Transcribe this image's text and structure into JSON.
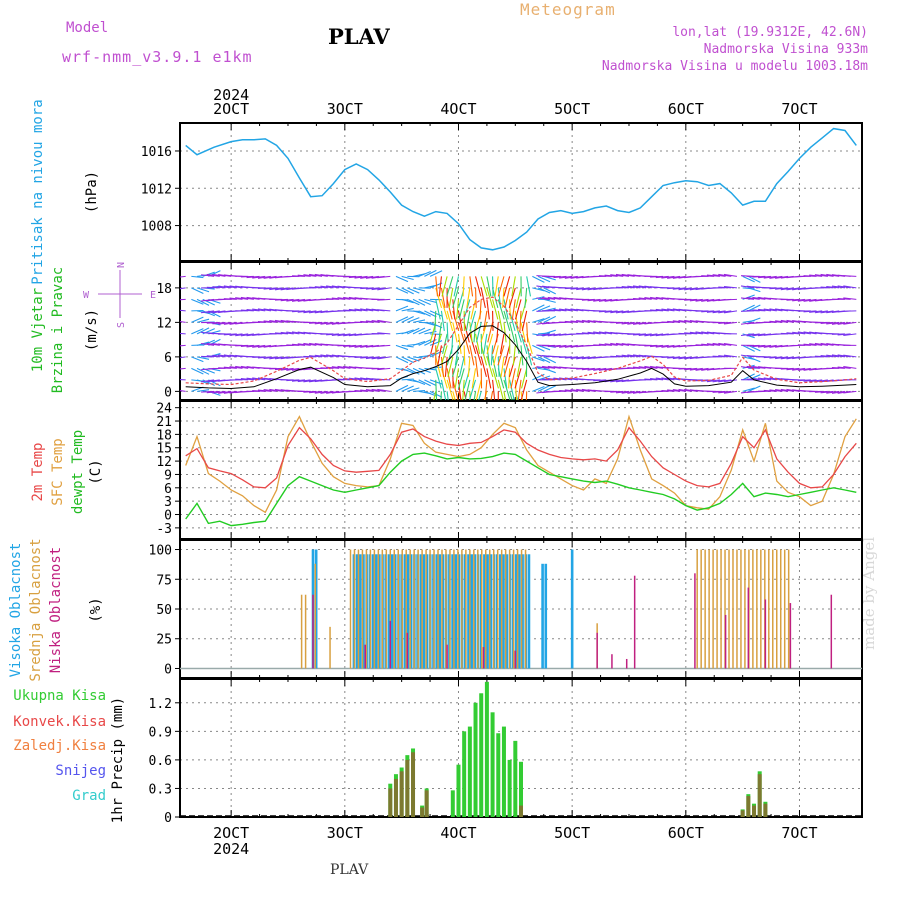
{
  "header": {
    "model_label": "Model",
    "model_name": "wrf-nmm_v3.9.1 e1km",
    "title": "PLAV",
    "meteogram": "Meteogram",
    "lonlat": "lon,lat (19.9312E, 42.6N)",
    "alt": "Nadmorska Visina 933m",
    "alt_model": "Nadmorska Visina u modelu 1003.18m",
    "footer_title": "PLAV",
    "watermark": "made by Angel"
  },
  "colors": {
    "pressure": "#22a5e5",
    "t2m": "#e84848",
    "sfc": "#e0a040",
    "dewpt": "#22cc22",
    "high_cloud": "#22a5e5",
    "mid_cloud": "#d8a040",
    "low_cloud": "#c02080",
    "precip_total": "#33cc33",
    "precip_conv": "#e84848",
    "precip_frozen": "#f08040",
    "snow": "#5555ee",
    "hail": "#33cccc",
    "gust": "#e84848",
    "wind_speed": "#000000"
  },
  "chart_data": [
    {
      "type": "line",
      "panel": "pressure",
      "top_year": "2024",
      "top_ticks": [
        "2OCT",
        "3OCT",
        "4OCT",
        "5OCT",
        "6OCT",
        "7OCT"
      ],
      "ylabel": "Pritisak na nivou mora",
      "yunit": "(hPa)",
      "yticks": [
        1008,
        1012,
        1016
      ],
      "ylim": [
        1004.2,
        1019
      ],
      "x": [
        1.6,
        1.7,
        1.85,
        2.0,
        2.1,
        2.2,
        2.3,
        2.4,
        2.5,
        2.6,
        2.7,
        2.8,
        2.9,
        3.0,
        3.1,
        3.2,
        3.3,
        3.4,
        3.5,
        3.6,
        3.7,
        3.8,
        3.9,
        4.0,
        4.1,
        4.2,
        4.3,
        4.4,
        4.5,
        4.6,
        4.7,
        4.8,
        4.9,
        5.0,
        5.1,
        5.2,
        5.3,
        5.4,
        5.5,
        5.6,
        5.7,
        5.8,
        5.9,
        6.0,
        6.1,
        6.2,
        6.3,
        6.4,
        6.5,
        6.6,
        6.7,
        6.8,
        6.9,
        7.0,
        7.1,
        7.2,
        7.3,
        7.4,
        7.5
      ],
      "values": [
        1016.6,
        1015.6,
        1016.4,
        1017.0,
        1017.2,
        1017.2,
        1017.3,
        1016.6,
        1015.2,
        1013.1,
        1011.1,
        1011.2,
        1012.5,
        1014.0,
        1014.6,
        1014.0,
        1012.9,
        1011.6,
        1010.2,
        1009.5,
        1009.0,
        1009.5,
        1009.3,
        1008.2,
        1006.5,
        1005.6,
        1005.4,
        1005.7,
        1006.4,
        1007.3,
        1008.7,
        1009.4,
        1009.6,
        1009.3,
        1009.5,
        1009.9,
        1010.1,
        1009.6,
        1009.4,
        1009.9,
        1011.1,
        1012.3,
        1012.6,
        1012.8,
        1012.7,
        1012.3,
        1012.5,
        1011.5,
        1010.2,
        1010.6,
        1010.6,
        1012.5,
        1013.8,
        1015.2,
        1016.4,
        1017.4,
        1018.4,
        1018.2,
        1016.6
      ]
    },
    {
      "type": "line",
      "panel": "wind",
      "ylabel": "10m Vjetar",
      "ylabel2": "Brzina i Pravac",
      "yunit": "(m/s)",
      "compass": {
        "n": "N",
        "s": "S",
        "w": "W",
        "e": "E"
      },
      "yticks": [
        0,
        6,
        12,
        18
      ],
      "ylim": [
        -1.5,
        22.5
      ],
      "series": [
        {
          "x": [
            1.6,
            1.8,
            2.0,
            2.2,
            2.4,
            2.6,
            2.7,
            2.9,
            3.0,
            3.2,
            3.4,
            3.5,
            3.6,
            3.7,
            3.8,
            3.9,
            4.0,
            4.1,
            4.2,
            4.3,
            4.4,
            4.5,
            4.6,
            4.7,
            4.8,
            5.0,
            5.2,
            5.4,
            5.6,
            5.7,
            5.8,
            5.9,
            6.0,
            6.2,
            6.4,
            6.5,
            6.6,
            6.8,
            7.0,
            7.2,
            7.4,
            7.5
          ],
          "values": [
            0.8,
            0.6,
            0.5,
            0.8,
            2.2,
            3.8,
            4.2,
            2.4,
            1.2,
            0.8,
            1.0,
            2.3,
            3.1,
            3.6,
            4.3,
            5.2,
            7.3,
            10.1,
            11.3,
            11.4,
            10.2,
            8.1,
            5.2,
            1.6,
            1.0,
            1.2,
            1.5,
            2.1,
            3.2,
            4.0,
            3.0,
            1.3,
            0.9,
            1.0,
            1.6,
            3.6,
            2.0,
            1.1,
            0.8,
            0.9,
            1.1,
            1.2
          ]
        },
        {
          "x": [
            1.6,
            1.8,
            2.0,
            2.2,
            2.4,
            2.6,
            2.7,
            2.9,
            3.0,
            3.2,
            3.4,
            3.5,
            3.6,
            3.7,
            3.8,
            3.9,
            4.0,
            4.1,
            4.2,
            4.3,
            4.4,
            4.5,
            4.6,
            4.7,
            4.8,
            5.0,
            5.2,
            5.4,
            5.6,
            5.7,
            5.8,
            5.9,
            6.0,
            6.2,
            6.4,
            6.5,
            6.6,
            6.8,
            7.0,
            7.2,
            7.4,
            7.5
          ],
          "values": [
            1.5,
            1.3,
            1.2,
            1.8,
            3.5,
            5.4,
            5.9,
            3.6,
            2.2,
            1.7,
            2.2,
            3.6,
            5.1,
            5.8,
            6.8,
            8.4,
            11.5,
            14.6,
            16.0,
            16.4,
            14.8,
            12.0,
            8.0,
            3.2,
            2.0,
            2.3,
            3.1,
            4.0,
            5.3,
            6.1,
            4.7,
            2.5,
            1.8,
            1.9,
            2.8,
            5.9,
            3.7,
            2.1,
            1.5,
            1.7,
            2.0,
            2.2
          ]
        }
      ]
    },
    {
      "type": "line",
      "panel": "temperature",
      "ylabel": "2m Temp",
      "ylabel2": "SFC Temp",
      "ylabel3": "dewpt Temp",
      "yunit": "(C)",
      "yticks": [
        -3,
        0,
        3,
        6,
        9,
        12,
        15,
        18,
        21,
        24
      ],
      "ylim": [
        -5.5,
        25.5
      ],
      "x": [
        1.6,
        1.7,
        1.8,
        1.9,
        2.0,
        2.1,
        2.2,
        2.3,
        2.4,
        2.5,
        2.6,
        2.7,
        2.8,
        2.9,
        3.0,
        3.1,
        3.2,
        3.3,
        3.4,
        3.5,
        3.6,
        3.7,
        3.8,
        3.9,
        4.0,
        4.1,
        4.2,
        4.3,
        4.4,
        4.5,
        4.6,
        4.7,
        4.8,
        4.9,
        5.0,
        5.1,
        5.2,
        5.3,
        5.4,
        5.5,
        5.6,
        5.7,
        5.8,
        5.9,
        6.0,
        6.1,
        6.2,
        6.3,
        6.4,
        6.5,
        6.6,
        6.7,
        6.8,
        6.9,
        7.0,
        7.1,
        7.2,
        7.3,
        7.4,
        7.5
      ],
      "series": [
        {
          "values": [
            13.2,
            14.8,
            10.5,
            9.8,
            9.2,
            7.8,
            6.2,
            6.0,
            8.2,
            15.5,
            19.5,
            17.0,
            13.5,
            11.0,
            9.8,
            9.5,
            9.7,
            9.9,
            13.5,
            18.5,
            19.2,
            17.5,
            16.5,
            15.8,
            15.5,
            16.0,
            16.2,
            17.5,
            19.0,
            18.5,
            16.0,
            14.5,
            13.5,
            12.8,
            12.5,
            12.3,
            12.5,
            12.0,
            14.5,
            19.5,
            16.5,
            13.0,
            10.5,
            9.0,
            7.5,
            6.5,
            6.2,
            7.0,
            11.5,
            17.5,
            15.0,
            19.0,
            12.5,
            9.5,
            7.0,
            6.0,
            6.2,
            9.0,
            13.0,
            16.0
          ]
        },
        {
          "values": [
            11.0,
            17.5,
            9.2,
            7.5,
            5.5,
            4.2,
            2.0,
            0.5,
            5.5,
            17.5,
            22.0,
            16.5,
            11.5,
            8.5,
            7.0,
            6.5,
            6.2,
            6.5,
            12.5,
            20.5,
            20.0,
            16.0,
            14.0,
            13.5,
            13.0,
            13.5,
            15.0,
            18.0,
            20.5,
            19.5,
            14.5,
            11.0,
            9.5,
            8.0,
            6.5,
            5.5,
            8.0,
            7.0,
            12.5,
            22.0,
            14.5,
            8.0,
            6.5,
            4.8,
            2.0,
            1.5,
            1.2,
            4.0,
            10.0,
            19.0,
            12.0,
            20.5,
            7.5,
            5.0,
            4.0,
            2.0,
            3.0,
            9.0,
            17.5,
            21.5
          ]
        },
        {
          "values": [
            -1.0,
            2.5,
            -2.0,
            -1.5,
            -2.5,
            -2.2,
            -1.8,
            -1.5,
            2.5,
            6.5,
            8.5,
            7.5,
            6.5,
            5.5,
            5.0,
            5.5,
            6.0,
            6.5,
            9.5,
            12.0,
            13.5,
            13.8,
            13.2,
            12.5,
            12.8,
            12.5,
            12.6,
            13.0,
            13.8,
            13.5,
            12.0,
            10.5,
            9.0,
            8.5,
            8.0,
            7.5,
            7.2,
            7.5,
            6.8,
            6.0,
            5.5,
            5.0,
            4.5,
            3.5,
            2.0,
            1.0,
            1.5,
            2.5,
            4.5,
            7.0,
            4.0,
            4.8,
            4.5,
            4.0,
            4.5,
            5.0,
            5.5,
            6.0,
            5.5,
            5.0
          ]
        }
      ]
    },
    {
      "type": "bar",
      "panel": "clouds",
      "ylabel": "Visoka Oblacnost",
      "ylabel2": "Srednja Oblacnost",
      "ylabel3": "Niska Oblacnost",
      "yunit": "(%)",
      "yticks": [
        0,
        25,
        50,
        75,
        100
      ],
      "ylim": [
        -8,
        108
      ],
      "high_ranges": [
        [
          2.72,
          2.76
        ],
        [
          3.08,
          4.62
        ],
        [
          4.74,
          4.78
        ],
        [
          5.0,
          5.02
        ]
      ],
      "high_step": 0.028,
      "high_values": [
        100,
        96,
        88,
        100
      ],
      "mid_ranges": [
        [
          2.62,
          2.66
        ],
        [
          2.74,
          2.77
        ],
        [
          3.05,
          4.6
        ],
        [
          6.1,
          6.92
        ]
      ],
      "mid_step": 0.035,
      "mid_values": [
        62,
        88,
        100,
        100
      ],
      "low_x": [
        2.72,
        3.18,
        3.4,
        3.55,
        3.9,
        4.22,
        4.5,
        5.22,
        5.35,
        5.48,
        5.55,
        6.08,
        6.35,
        6.55,
        6.7,
        6.92,
        7.28
      ],
      "low_values": [
        62,
        20,
        40,
        30,
        20,
        18,
        15,
        30,
        12,
        8,
        78,
        80,
        45,
        68,
        58,
        55,
        62
      ],
      "extra_mid_x": [
        2.87,
        5.22
      ],
      "extra_mid_values": [
        35,
        38
      ]
    },
    {
      "type": "bar",
      "panel": "precipitation",
      "ylabel": "1hr Precip",
      "yunit": "(mm)",
      "legend": [
        "Ukupna Kisa",
        "Konvek.Kisa",
        "Zaledj.Kisa",
        "Snijeg",
        "Grad"
      ],
      "yticks": [
        0,
        0.3,
        0.6,
        0.9,
        1.2
      ],
      "ylim": [
        0,
        1.45
      ],
      "x": [
        3.4,
        3.45,
        3.5,
        3.55,
        3.6,
        3.68,
        3.72,
        3.95,
        4.0,
        4.05,
        4.1,
        4.15,
        4.2,
        4.25,
        4.3,
        4.35,
        4.4,
        4.45,
        4.5,
        4.55,
        6.5,
        6.55,
        6.6,
        6.65,
        6.7
      ],
      "values": [
        0.35,
        0.45,
        0.52,
        0.65,
        0.72,
        0.12,
        0.3,
        0.28,
        0.55,
        0.9,
        0.95,
        1.2,
        1.3,
        1.42,
        1.1,
        0.88,
        0.95,
        0.6,
        0.8,
        0.58,
        0.08,
        0.24,
        0.14,
        0.48,
        0.16
      ],
      "conv": [
        0.3,
        0.4,
        0.48,
        0.6,
        0.68,
        0.1,
        0.28,
        0.0,
        0.0,
        0.0,
        0.0,
        0.0,
        0.0,
        0.0,
        0.0,
        0.0,
        0.0,
        0.0,
        0.0,
        0.12,
        0.07,
        0.22,
        0.12,
        0.45,
        0.14
      ],
      "bottom_ticks": [
        "2OCT",
        "3OCT",
        "4OCT",
        "5OCT",
        "6OCT",
        "7OCT"
      ],
      "bottom_year": "2024"
    }
  ]
}
